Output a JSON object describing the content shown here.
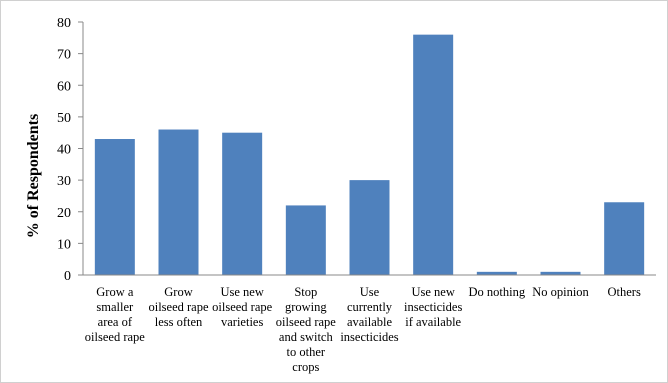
{
  "chart_data": {
    "type": "bar",
    "title": "",
    "xlabel": "",
    "ylabel": "% of Respondents",
    "ylim": [
      0,
      80
    ],
    "yticks": [
      0,
      10,
      20,
      30,
      40,
      50,
      60,
      70,
      80
    ],
    "grid": false,
    "legend": "none",
    "bar_color": "#4f81bd",
    "categories": [
      [
        "Grow a",
        "smaller",
        "area of",
        "oilseed rape"
      ],
      [
        "Grow",
        "oilseed rape",
        "less often"
      ],
      [
        "Use new",
        "oilseed rape",
        "varieties"
      ],
      [
        "Stop",
        "growing",
        "oilseed rape",
        "and switch",
        "to other",
        "crops"
      ],
      [
        "Use",
        "currently",
        "available",
        "insecticides"
      ],
      [
        "Use new",
        "insecticides",
        "if available"
      ],
      [
        "Do nothing"
      ],
      [
        "No opinion"
      ],
      [
        "Others"
      ]
    ],
    "values": [
      43,
      46,
      45,
      22,
      30,
      76,
      1,
      1,
      23
    ]
  }
}
